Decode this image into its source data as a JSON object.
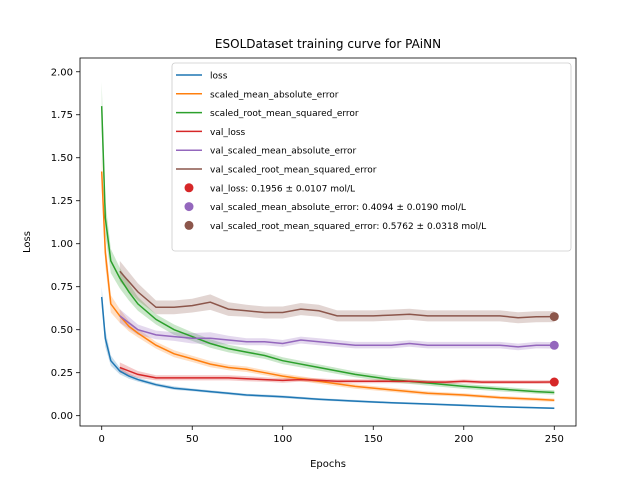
{
  "chart_data": {
    "type": "line",
    "title": "ESOLDataset training curve for PAiNN",
    "xlabel": "Epochs",
    "ylabel": "Loss",
    "xlim": [
      -12,
      262
    ],
    "ylim": [
      -0.06,
      2.08
    ],
    "xticks": [
      0,
      50,
      100,
      150,
      200,
      250
    ],
    "yticks": [
      0.0,
      0.25,
      0.5,
      0.75,
      1.0,
      1.25,
      1.5,
      1.75,
      2.0
    ],
    "xtick_labels": [
      "0",
      "50",
      "100",
      "150",
      "200",
      "250"
    ],
    "ytick_labels": [
      "0.00",
      "0.25",
      "0.50",
      "0.75",
      "1.00",
      "1.25",
      "1.50",
      "1.75",
      "2.00"
    ],
    "grid": false,
    "legend_position": "top-right",
    "series": [
      {
        "name": "loss",
        "color": "#1f77b4",
        "x": [
          0,
          2,
          5,
          10,
          15,
          20,
          30,
          40,
          50,
          60,
          70,
          80,
          90,
          100,
          120,
          140,
          160,
          180,
          200,
          220,
          240,
          250
        ],
        "y": [
          0.69,
          0.45,
          0.32,
          0.26,
          0.23,
          0.21,
          0.18,
          0.16,
          0.15,
          0.14,
          0.13,
          0.12,
          0.115,
          0.11,
          0.095,
          0.085,
          0.075,
          0.068,
          0.06,
          0.052,
          0.046,
          0.043
        ],
        "band": [
          0.06,
          0.05,
          0.03,
          0.02,
          0.015,
          0.012,
          0.01,
          0.01,
          0.008,
          0.008,
          0.008,
          0.008,
          0.008,
          0.008,
          0.007,
          0.007,
          0.006,
          0.006,
          0.006,
          0.005,
          0.005,
          0.005
        ]
      },
      {
        "name": "scaled_mean_absolute_error",
        "color": "#ff7f0e",
        "x": [
          0,
          2,
          5,
          10,
          15,
          20,
          30,
          40,
          50,
          60,
          70,
          80,
          90,
          100,
          120,
          140,
          160,
          180,
          200,
          220,
          240,
          250
        ],
        "y": [
          1.42,
          0.95,
          0.65,
          0.58,
          0.52,
          0.48,
          0.41,
          0.36,
          0.33,
          0.3,
          0.28,
          0.27,
          0.25,
          0.23,
          0.2,
          0.17,
          0.15,
          0.13,
          0.12,
          0.105,
          0.095,
          0.09
        ],
        "band": [
          0.1,
          0.08,
          0.05,
          0.04,
          0.03,
          0.025,
          0.02,
          0.02,
          0.018,
          0.018,
          0.016,
          0.016,
          0.015,
          0.015,
          0.014,
          0.013,
          0.012,
          0.011,
          0.01,
          0.01,
          0.01,
          0.01
        ]
      },
      {
        "name": "scaled_root_mean_squared_error",
        "color": "#2ca02c",
        "x": [
          0,
          2,
          5,
          10,
          15,
          20,
          30,
          40,
          50,
          60,
          70,
          80,
          90,
          100,
          120,
          140,
          160,
          180,
          200,
          220,
          240,
          250
        ],
        "y": [
          1.8,
          1.15,
          0.9,
          0.8,
          0.72,
          0.65,
          0.56,
          0.5,
          0.46,
          0.42,
          0.39,
          0.37,
          0.35,
          0.32,
          0.28,
          0.24,
          0.21,
          0.19,
          0.17,
          0.155,
          0.14,
          0.135
        ],
        "band": [
          0.14,
          0.1,
          0.07,
          0.06,
          0.05,
          0.04,
          0.03,
          0.03,
          0.025,
          0.025,
          0.022,
          0.022,
          0.02,
          0.02,
          0.018,
          0.017,
          0.016,
          0.015,
          0.014,
          0.014,
          0.013,
          0.013
        ]
      },
      {
        "name": "val_loss",
        "color": "#d62728",
        "x": [
          10,
          20,
          30,
          40,
          50,
          60,
          70,
          80,
          90,
          100,
          110,
          120,
          130,
          140,
          150,
          160,
          170,
          180,
          190,
          200,
          210,
          220,
          230,
          240,
          250
        ],
        "y": [
          0.28,
          0.24,
          0.22,
          0.22,
          0.22,
          0.22,
          0.22,
          0.215,
          0.21,
          0.205,
          0.21,
          0.205,
          0.2,
          0.2,
          0.2,
          0.2,
          0.2,
          0.195,
          0.195,
          0.2,
          0.195,
          0.195,
          0.195,
          0.195,
          0.196
        ],
        "band": [
          0.03,
          0.02,
          0.015,
          0.015,
          0.015,
          0.015,
          0.015,
          0.015,
          0.013,
          0.013,
          0.012,
          0.012,
          0.012,
          0.012,
          0.011,
          0.011,
          0.011,
          0.011,
          0.011,
          0.011,
          0.011,
          0.011,
          0.011,
          0.011,
          0.011
        ]
      },
      {
        "name": "val_scaled_mean_absolute_error",
        "color": "#9467bd",
        "x": [
          10,
          20,
          30,
          40,
          50,
          60,
          70,
          80,
          90,
          100,
          110,
          120,
          130,
          140,
          150,
          160,
          170,
          180,
          190,
          200,
          210,
          220,
          230,
          240,
          250
        ],
        "y": [
          0.58,
          0.5,
          0.47,
          0.46,
          0.45,
          0.45,
          0.44,
          0.43,
          0.43,
          0.42,
          0.44,
          0.43,
          0.42,
          0.41,
          0.41,
          0.41,
          0.42,
          0.41,
          0.41,
          0.41,
          0.41,
          0.41,
          0.4,
          0.41,
          0.409
        ],
        "band": [
          0.04,
          0.03,
          0.025,
          0.025,
          0.03,
          0.035,
          0.025,
          0.02,
          0.02,
          0.02,
          0.02,
          0.02,
          0.02,
          0.019,
          0.019,
          0.019,
          0.019,
          0.019,
          0.019,
          0.019,
          0.019,
          0.019,
          0.019,
          0.019,
          0.019
        ]
      },
      {
        "name": "val_scaled_root_mean_squared_error",
        "color": "#8c564b",
        "x": [
          10,
          20,
          30,
          40,
          50,
          60,
          70,
          80,
          90,
          100,
          110,
          120,
          130,
          140,
          150,
          160,
          170,
          180,
          190,
          200,
          210,
          220,
          230,
          240,
          250
        ],
        "y": [
          0.84,
          0.72,
          0.63,
          0.63,
          0.64,
          0.66,
          0.62,
          0.61,
          0.6,
          0.6,
          0.62,
          0.61,
          0.58,
          0.58,
          0.58,
          0.585,
          0.59,
          0.58,
          0.58,
          0.58,
          0.58,
          0.58,
          0.57,
          0.575,
          0.576
        ],
        "band": [
          0.06,
          0.05,
          0.04,
          0.04,
          0.04,
          0.045,
          0.04,
          0.035,
          0.035,
          0.035,
          0.035,
          0.035,
          0.032,
          0.032,
          0.032,
          0.032,
          0.032,
          0.032,
          0.032,
          0.032,
          0.032,
          0.032,
          0.032,
          0.032,
          0.032
        ]
      }
    ],
    "final_points": [
      {
        "label": "val_loss: 0.1956 ± 0.0107 mol/L",
        "x": 250,
        "y": 0.1956,
        "color": "#d62728"
      },
      {
        "label": "val_scaled_mean_absolute_error: 0.4094 ± 0.0190 mol/L",
        "x": 250,
        "y": 0.4094,
        "color": "#9467bd"
      },
      {
        "label": "val_scaled_root_mean_squared_error: 0.5762 ± 0.0318 mol/L",
        "x": 250,
        "y": 0.5762,
        "color": "#8c564b"
      }
    ]
  }
}
